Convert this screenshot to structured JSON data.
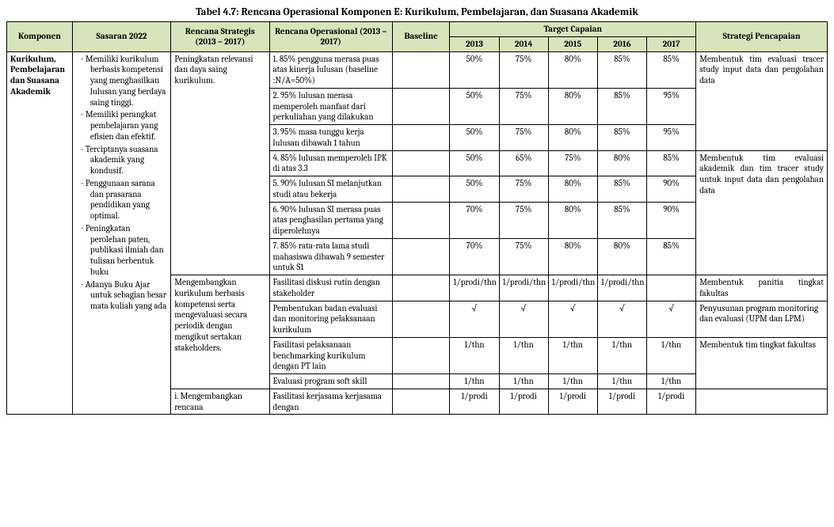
{
  "title": "Tabel 4.7: Rencana Operasional Komponen E: Kurikulum, Pembelajaran, dan Suasana Akademik",
  "headers": {
    "komponen": "Komponen",
    "sasaran": "Sasaran 2022",
    "renstra": "Rencana Strategis (2013 – 2017)",
    "renops": "Rencana Operasional (2013 – 2017)",
    "baseline": "Baseline",
    "target": "Target Capaian",
    "strategi": "Strategi Pencapaian",
    "y2013": "2013",
    "y2014": "2014",
    "y2015": "2015",
    "y2016": "2016",
    "y2017": "2017"
  },
  "komponen": "Kurikulum, Pembelajaran dan Suasana Akademik",
  "sasaran": [
    "Memiliki kurikulum berbasis kompetensi yang menghasilkan lulusan yang berdaya saing tinggi.",
    "Memiliki perangkat pembelajaran yang efisien dan efektif.",
    "Terciptanya suasana akademik yang kondusif.",
    "Penggunaan sarana dan prasarana pendidikan yang optimal.",
    "Peningkatan perolehan paten, publikasi ilmiah dan tulisan berbentuk buku",
    "Adanya Buku Ajar untuk sebagian besar mata kuliah yang ada"
  ],
  "renstra1": "Peningkatan relevansi dan daya saing kurikulum.",
  "renstra2": "Mengembangkan kurikulum berbasis kompetensi serta mengevaluasi secara periodik dengan mengikut sertakan stakeholders.",
  "renstra3": "i.  Mengembangkan rencana",
  "rows": [
    {
      "op": "1. 85% pengguna merasa puas atas kinerja lulusan (baseline :N/A=50%)",
      "base": "",
      "y13": "50%",
      "y14": "75%",
      "y15": "80%",
      "y16": "85%",
      "y17": "85%"
    },
    {
      "op": "2. 95% lulusan merasa memperoleh manfaat dari perkuliahan yang dilakukan",
      "base": "",
      "y13": "50%",
      "y14": "75%",
      "y15": "80%",
      "y16": "85%",
      "y17": "95%"
    },
    {
      "op": "3. 95% masa tunggu kerja lulusan dibawah 1 tahun",
      "base": "",
      "y13": "50%",
      "y14": "75%",
      "y15": "80%",
      "y16": "85%",
      "y17": "95%"
    },
    {
      "op": "4. 85% lulusan memperoleh IPK di atas 3.3",
      "base": "",
      "y13": "50%",
      "y14": "65%",
      "y15": "75%",
      "y16": "80%",
      "y17": "85%"
    },
    {
      "op": "5. 90% lulusan SI melanjutkan studi atau bekerja",
      "base": "",
      "y13": "50%",
      "y14": "75%",
      "y15": "80%",
      "y16": "85%",
      "y17": "90%"
    },
    {
      "op": "6. 90% lulusan SI merasa puas atas penghasilan pertama yang diperolehnya",
      "base": "",
      "y13": "70%",
      "y14": "75%",
      "y15": "80%",
      "y16": "85%",
      "y17": "90%"
    },
    {
      "op": "7. 85% rata-rata lama studi mahasiswa dibawah 9 semester untuk S1",
      "base": "",
      "y13": "70%",
      "y14": "75%",
      "y15": "80%",
      "y16": "80%",
      "y17": "85%"
    },
    {
      "op": "Fasilitasi diskusi rutin dengan stakeholder",
      "base": "",
      "y13": "1/prodi/thn",
      "y14": "1/prodi/thn",
      "y15": "1/prodi/thn",
      "y16": "1/prodi/thn",
      "y17": ""
    },
    {
      "op": "Pembentukan badan evaluasi dan monitoring pelaksanaan kurikulum",
      "base": "",
      "y13": "√",
      "y14": "√",
      "y15": "√",
      "y16": "√",
      "y17": "√"
    },
    {
      "op": "Fasilitasi pelaksanaan benchmarking kurikulum dengan PT lain",
      "base": "",
      "y13": "1/thn",
      "y14": "1/thn",
      "y15": "1/thn",
      "y16": "1/thn",
      "y17": "1/thn"
    },
    {
      "op": "Evaluasi program soft skill",
      "base": "",
      "y13": "1/thn",
      "y14": "1/thn",
      "y15": "1/thn",
      "y16": "1/thn",
      "y17": "1/thn"
    },
    {
      "op": "Fasilitasi kerjasama kerjasama dengan",
      "base": "",
      "y13": "1/prodi",
      "y14": "1/prodi",
      "y15": "1/prodi",
      "y16": "1/prodi",
      "y17": "1/prodi"
    }
  ],
  "strategi1": "Membentuk tim evaluasi tracer study input data dan pengolahan data",
  "strategi2": "Membentuk tim evaluasi akademik dan tim tracer study untuk input data dan pengolahan data",
  "strategi3": "Membentuk panitia tingkat fakultas",
  "strategi4": "Penyusunan program monitoring dan evaluasi (UPM dan LPM)",
  "strategi5": "Membentuk tim tingkat fakultas"
}
